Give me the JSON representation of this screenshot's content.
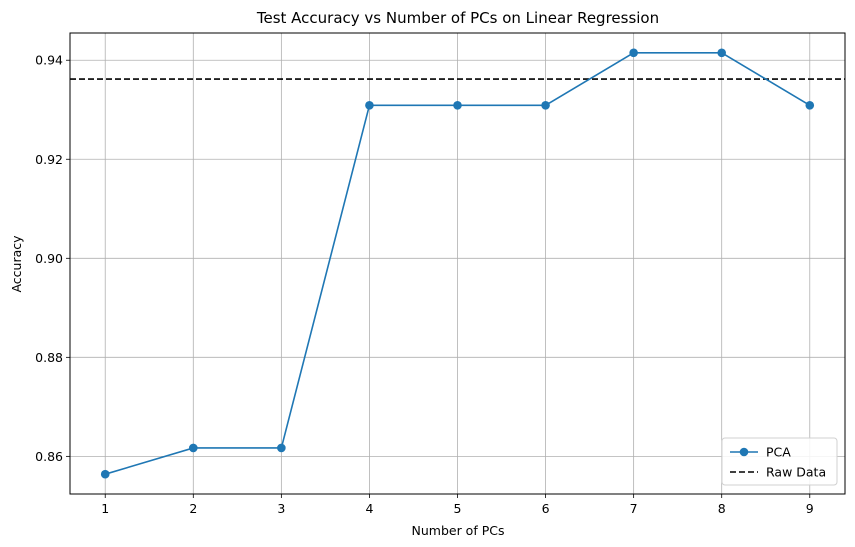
{
  "chart_data": {
    "type": "line",
    "title": "Test Accuracy vs Number of PCs on Linear Regression",
    "xlabel": "Number of PCs",
    "ylabel": "Accuracy",
    "x": [
      1,
      2,
      3,
      4,
      5,
      6,
      7,
      8,
      9
    ],
    "xlim": [
      0.6,
      9.4
    ],
    "ylim": [
      0.8524,
      0.9455
    ],
    "xticks": [
      1,
      2,
      3,
      4,
      5,
      6,
      7,
      8,
      9
    ],
    "yticks": [
      0.86,
      0.88,
      0.9,
      0.92,
      0.94
    ],
    "ytick_labels": [
      "0.86",
      "0.88",
      "0.90",
      "0.92",
      "0.94"
    ],
    "grid": true,
    "legend_position": "lower-right",
    "series": [
      {
        "name": "PCA",
        "values": [
          0.8564,
          0.8617,
          0.8617,
          0.9309,
          0.9309,
          0.9309,
          0.9415,
          0.9415,
          0.9309
        ],
        "color": "#1f77b4",
        "marker": "circle",
        "style": "solid"
      }
    ],
    "reference_lines": [
      {
        "name": "Raw Data",
        "y": 0.9362,
        "color": "#000000",
        "style": "dashed"
      }
    ]
  }
}
